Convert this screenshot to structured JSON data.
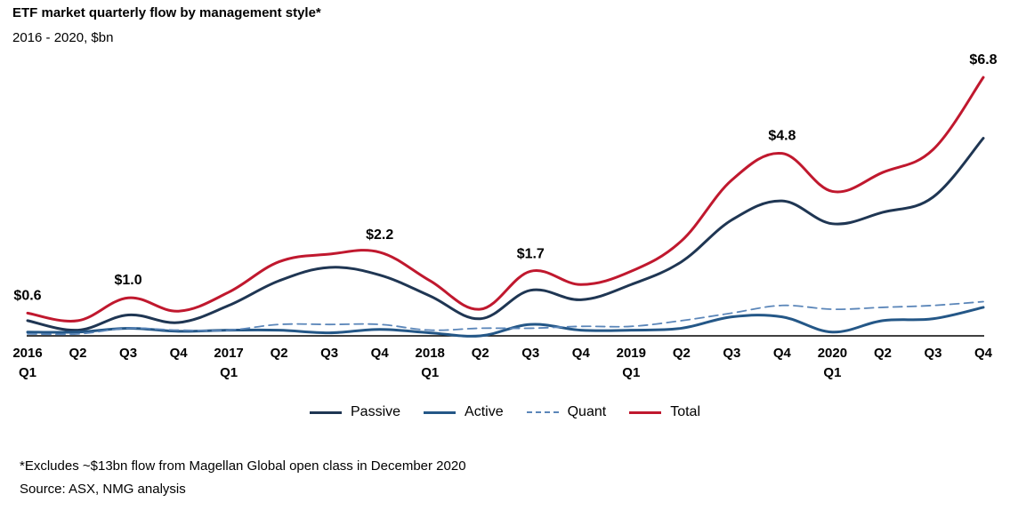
{
  "header": {
    "title": "ETF market quarterly flow by management style*",
    "subtitle": "2016 - 2020, $bn"
  },
  "footnotes": {
    "note": "*Excludes ~$13bn flow from Magellan Global open class in December 2020",
    "source": "Source: ASX, NMG analysis"
  },
  "chart_data": {
    "type": "line",
    "categories": [
      [
        "2016",
        "Q1"
      ],
      [
        "Q2"
      ],
      [
        "Q3"
      ],
      [
        "Q4"
      ],
      [
        "2017",
        "Q1"
      ],
      [
        "Q2"
      ],
      [
        "Q3"
      ],
      [
        "Q4"
      ],
      [
        "2018",
        "Q1"
      ],
      [
        "Q2"
      ],
      [
        "Q3"
      ],
      [
        "Q4"
      ],
      [
        "2019",
        "Q1"
      ],
      [
        "Q2"
      ],
      [
        "Q3"
      ],
      [
        "Q4"
      ],
      [
        "2020",
        "Q1"
      ],
      [
        "Q2"
      ],
      [
        "Q3"
      ],
      [
        "Q4"
      ]
    ],
    "ylim": [
      0,
      7.2
    ],
    "series": [
      {
        "name": "Passive",
        "color": "#1f3653",
        "dash": false,
        "values": [
          0.4,
          0.15,
          0.55,
          0.35,
          0.8,
          1.45,
          1.8,
          1.6,
          1.05,
          0.45,
          1.2,
          0.95,
          1.35,
          1.95,
          3.05,
          3.55,
          2.95,
          3.25,
          3.65,
          5.2
        ]
      },
      {
        "name": "Active",
        "color": "#245787",
        "dash": false,
        "values": [
          0.1,
          0.1,
          0.2,
          0.12,
          0.15,
          0.15,
          0.08,
          0.17,
          0.08,
          0.0,
          0.3,
          0.15,
          0.15,
          0.2,
          0.5,
          0.5,
          0.1,
          0.4,
          0.45,
          0.75
        ]
      },
      {
        "name": "Quant",
        "color": "#5b86b9",
        "dash": true,
        "values": [
          0.05,
          0.05,
          0.2,
          0.15,
          0.15,
          0.3,
          0.3,
          0.3,
          0.15,
          0.2,
          0.2,
          0.25,
          0.25,
          0.4,
          0.6,
          0.8,
          0.7,
          0.75,
          0.8,
          0.9
        ]
      },
      {
        "name": "Total",
        "color": "#c0182e",
        "dash": false,
        "values": [
          0.6,
          0.4,
          1.0,
          0.65,
          1.15,
          1.95,
          2.15,
          2.2,
          1.45,
          0.7,
          1.7,
          1.35,
          1.7,
          2.5,
          4.1,
          4.8,
          3.8,
          4.3,
          4.9,
          6.8
        ]
      }
    ],
    "annotations": [
      {
        "index": 0,
        "text": "$0.6"
      },
      {
        "index": 2,
        "text": "$1.0"
      },
      {
        "index": 7,
        "text": "$2.2"
      },
      {
        "index": 10,
        "text": "$1.7"
      },
      {
        "index": 15,
        "text": "$4.8"
      },
      {
        "index": 19,
        "text": "$6.8"
      }
    ],
    "legend_position": "bottom-center",
    "grid": false
  }
}
